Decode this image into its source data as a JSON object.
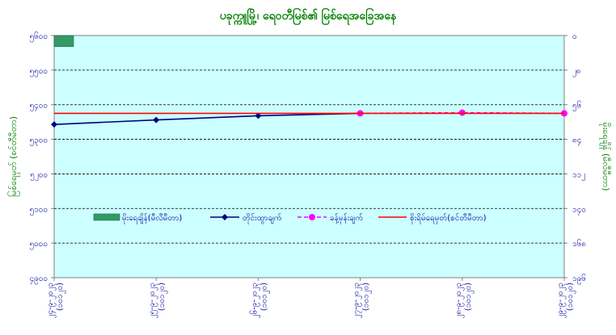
{
  "chart_data": {
    "type": "line",
    "title": "ပခုက္ကူမြို့၊ ရေဝတီမြစ်၏ မြစ်ရေအခြေအနေ",
    "categories": [
      "၂၄-၉-၂၀၂၃ (၁၀၁၂၀)",
      "၂၅-၉-၂၀၂၃ (၁၀၁၂၀)",
      "၂၆-၉-၂၀၂၃ (၁၀၁၂၀)",
      "၂၇-၉-၂၀၂၃ (၁၀၁၂၀)",
      "၂၈-၉-၂၀၂၃ (၁၀၁၂၀)",
      "၂၉-၉-၂၀၂၃ (၁၀၁၂၀)"
    ],
    "ylabel_left": "မြစ်ရေမှတ် (စင်တီမီတာ)",
    "ylabel_right": "မိုးရေချိန် (မီလီမီတာ)",
    "ylim_left": [
      4900,
      5600
    ],
    "ylim_right": [
      0,
      196
    ],
    "yticks_left": [
      "၅၆၀၀",
      "၅၅၀၀",
      "၅၄၀၀",
      "၅၃၀၀",
      "၅၂၀၀",
      "၅၁၀၀",
      "၅၀၀၀",
      "၄၉၀၀"
    ],
    "yticks_right": [
      "၀",
      "၂၈",
      "၅၆",
      "၈၄",
      "၁၁၂",
      "၁၄၀",
      "၁၆၈",
      "၁၉၆"
    ],
    "yticks_left_values": [
      5600,
      5500,
      5400,
      5300,
      5200,
      5100,
      5000,
      4900
    ],
    "yticks_right_values": [
      0,
      28,
      56,
      84,
      112,
      140,
      168,
      196
    ],
    "grid": true,
    "legend_position": "center",
    "series": [
      {
        "name": "မိုးရေချိန်(မီလီမီတာ)",
        "kind": "bar",
        "axis": "right",
        "color": "#339966",
        "values": [
          9,
          0,
          0,
          0,
          0,
          0
        ]
      },
      {
        "name": "တိုင်းထွာချက်",
        "kind": "line",
        "axis": "left",
        "color": "#000080",
        "marker": "diamond",
        "values": [
          5343,
          5356,
          5368,
          5375,
          null,
          null
        ]
      },
      {
        "name": "ခန့်မှန်းချက်",
        "kind": "line",
        "dashed": true,
        "axis": "left",
        "color": "#ff00ff",
        "marker": "circle",
        "values": [
          null,
          null,
          null,
          5375,
          5377,
          5375
        ]
      },
      {
        "name": "စိုးရိမ်ရေမှတ်(စင်တီမီတာ)",
        "kind": "line",
        "axis": "left",
        "color": "#ff0000",
        "marker": "none",
        "values": [
          5375,
          5375,
          5375,
          5375,
          5375,
          5375
        ]
      }
    ]
  }
}
